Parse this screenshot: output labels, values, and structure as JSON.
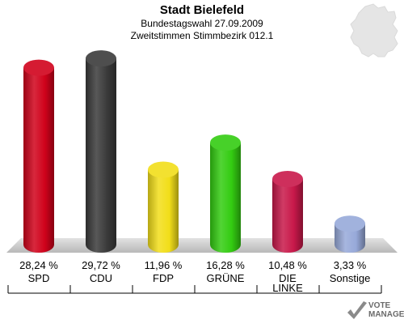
{
  "title": "Stadt Bielefeld",
  "subtitle1": "Bundestagswahl 27.09.2009",
  "subtitle2": "Zweitstimmen Stimmbezirk 012.1",
  "chart_data": {
    "type": "bar",
    "categories": [
      "SPD",
      "CDU",
      "FDP",
      "GRÜNE",
      "DIE LINKE",
      "Sonstige"
    ],
    "values": [
      28.24,
      29.72,
      11.96,
      16.28,
      10.48,
      3.33
    ],
    "value_labels": [
      "28,24 %",
      "29,72 %",
      "11,96 %",
      "16,28 %",
      "10,48 %",
      "3,33 %"
    ],
    "colors": [
      "#d0021b",
      "#3a3a3a",
      "#f2de19",
      "#33cc11",
      "#c8184a",
      "#97a9d9"
    ],
    "ylim": [
      0,
      30
    ]
  },
  "logo": {
    "line1": "VOTE",
    "line2": "MANAGER",
    "icon": "check-mark-icon"
  }
}
